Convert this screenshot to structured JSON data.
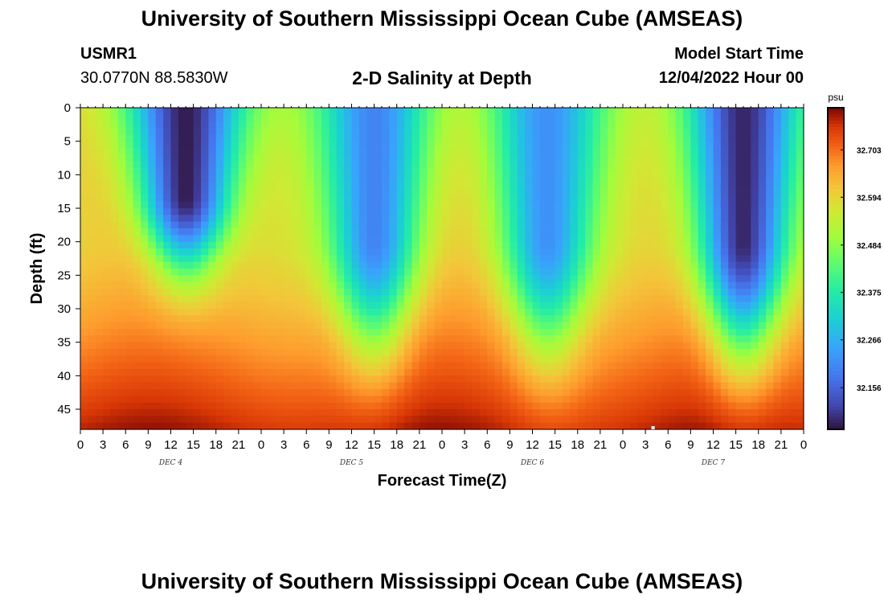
{
  "header": {
    "title": "University of Southern Mississippi Ocean Cube (AMSEAS)",
    "station_id": "USMR1",
    "station_coords": "30.0770N  88.5830W",
    "subtitle": "2-D Salinity at Depth",
    "model_start_label": "Model Start Time",
    "model_start_value": "12/04/2022 Hour 00"
  },
  "footer": {
    "title": "University of Southern Mississippi Ocean Cube (AMSEAS)"
  },
  "chart_data": {
    "type": "heatmap",
    "title": "2-D Salinity at Depth",
    "xlabel": "Forecast Time(Z)",
    "ylabel": "Depth (ft)",
    "x_hours_range": [
      0,
      96
    ],
    "x_tick_step_hours": 3,
    "x_tick_labels": [
      "0",
      "3",
      "6",
      "9",
      "12",
      "15",
      "18",
      "21",
      "0",
      "3",
      "6",
      "9",
      "12",
      "15",
      "18",
      "21",
      "0",
      "3",
      "6",
      "9",
      "12",
      "15",
      "18",
      "21",
      "0",
      "3",
      "6",
      "9",
      "12",
      "15",
      "18",
      "21",
      "0"
    ],
    "day_labels": [
      {
        "label": "DEC 4",
        "hour": 12
      },
      {
        "label": "DEC 5",
        "hour": 36
      },
      {
        "label": "DEC 6",
        "hour": 60
      },
      {
        "label": "DEC 7",
        "hour": 84
      }
    ],
    "ylim": [
      0,
      48
    ],
    "y_ticks": [
      0,
      5,
      10,
      15,
      20,
      25,
      30,
      35,
      40,
      45
    ],
    "colorbar": {
      "unit": "psu",
      "range": [
        32.06,
        32.8
      ],
      "ticks": [
        "32.703",
        "32.594",
        "32.484",
        "32.375",
        "32.266",
        "32.156"
      ]
    },
    "low_salinity_features": [
      {
        "center_hour": 14,
        "bottom_depth_ft": 24,
        "min_value": 32.07
      },
      {
        "center_hour": 39,
        "bottom_depth_ft": 35,
        "min_value": 32.2
      },
      {
        "center_hour": 62,
        "bottom_depth_ft": 35,
        "min_value": 32.22
      },
      {
        "center_hour": 88,
        "bottom_depth_ft": 36,
        "min_value": 32.08
      }
    ],
    "notes": "Salinity lowest near surface in 4 diurnal plumes; highest (about 32.78 psu) near the bottom."
  }
}
